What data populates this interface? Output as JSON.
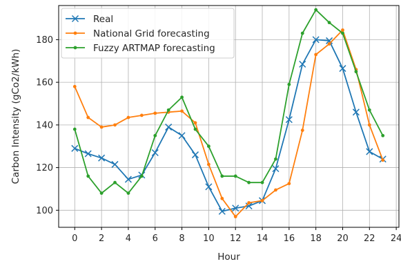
{
  "chart_data": {
    "type": "line",
    "xlabel": "Hour",
    "ylabel": "Carbon Intensity (gCo2/kWh)",
    "xlim": [
      -1.2,
      24.2
    ],
    "ylim": [
      92,
      196
    ],
    "xticks": [
      0,
      2,
      4,
      6,
      8,
      10,
      12,
      14,
      16,
      18,
      20,
      22,
      24
    ],
    "yticks": [
      100,
      120,
      140,
      160,
      180
    ],
    "grid": true,
    "legend_position": "top-left",
    "x": [
      0,
      1,
      2,
      3,
      4,
      5,
      6,
      7,
      8,
      9,
      10,
      11,
      12,
      13,
      14,
      15,
      16,
      17,
      18,
      19,
      20,
      21,
      22,
      23
    ],
    "series": [
      {
        "name": "Real",
        "color": "#1f77b4",
        "marker": "x",
        "values": [
          129,
          126.5,
          124.5,
          121.5,
          114.5,
          116.5,
          127,
          139,
          135,
          126,
          111,
          99.5,
          101,
          102,
          104.5,
          119.5,
          142.5,
          168.5,
          180,
          179.5,
          166.5,
          146,
          127.5,
          124
        ]
      },
      {
        "name": "National Grid forecasting",
        "color": "#ff7f0e",
        "marker": "dot",
        "values": [
          158,
          143.5,
          139,
          140,
          143.5,
          144.5,
          145.5,
          146,
          146.5,
          141,
          121.5,
          105.5,
          97,
          103.5,
          104.5,
          109.5,
          112.5,
          137.5,
          173,
          178,
          184.5,
          166,
          140,
          123.5
        ]
      },
      {
        "name": "Fuzzy ARTMAP forecasting",
        "color": "#2ca02c",
        "marker": "dot",
        "values": [
          138,
          116,
          108,
          113,
          108,
          116,
          135,
          147,
          153,
          138,
          130,
          116,
          116,
          113,
          113,
          124,
          159,
          183,
          194,
          188,
          183,
          165,
          147,
          135
        ]
      }
    ]
  }
}
